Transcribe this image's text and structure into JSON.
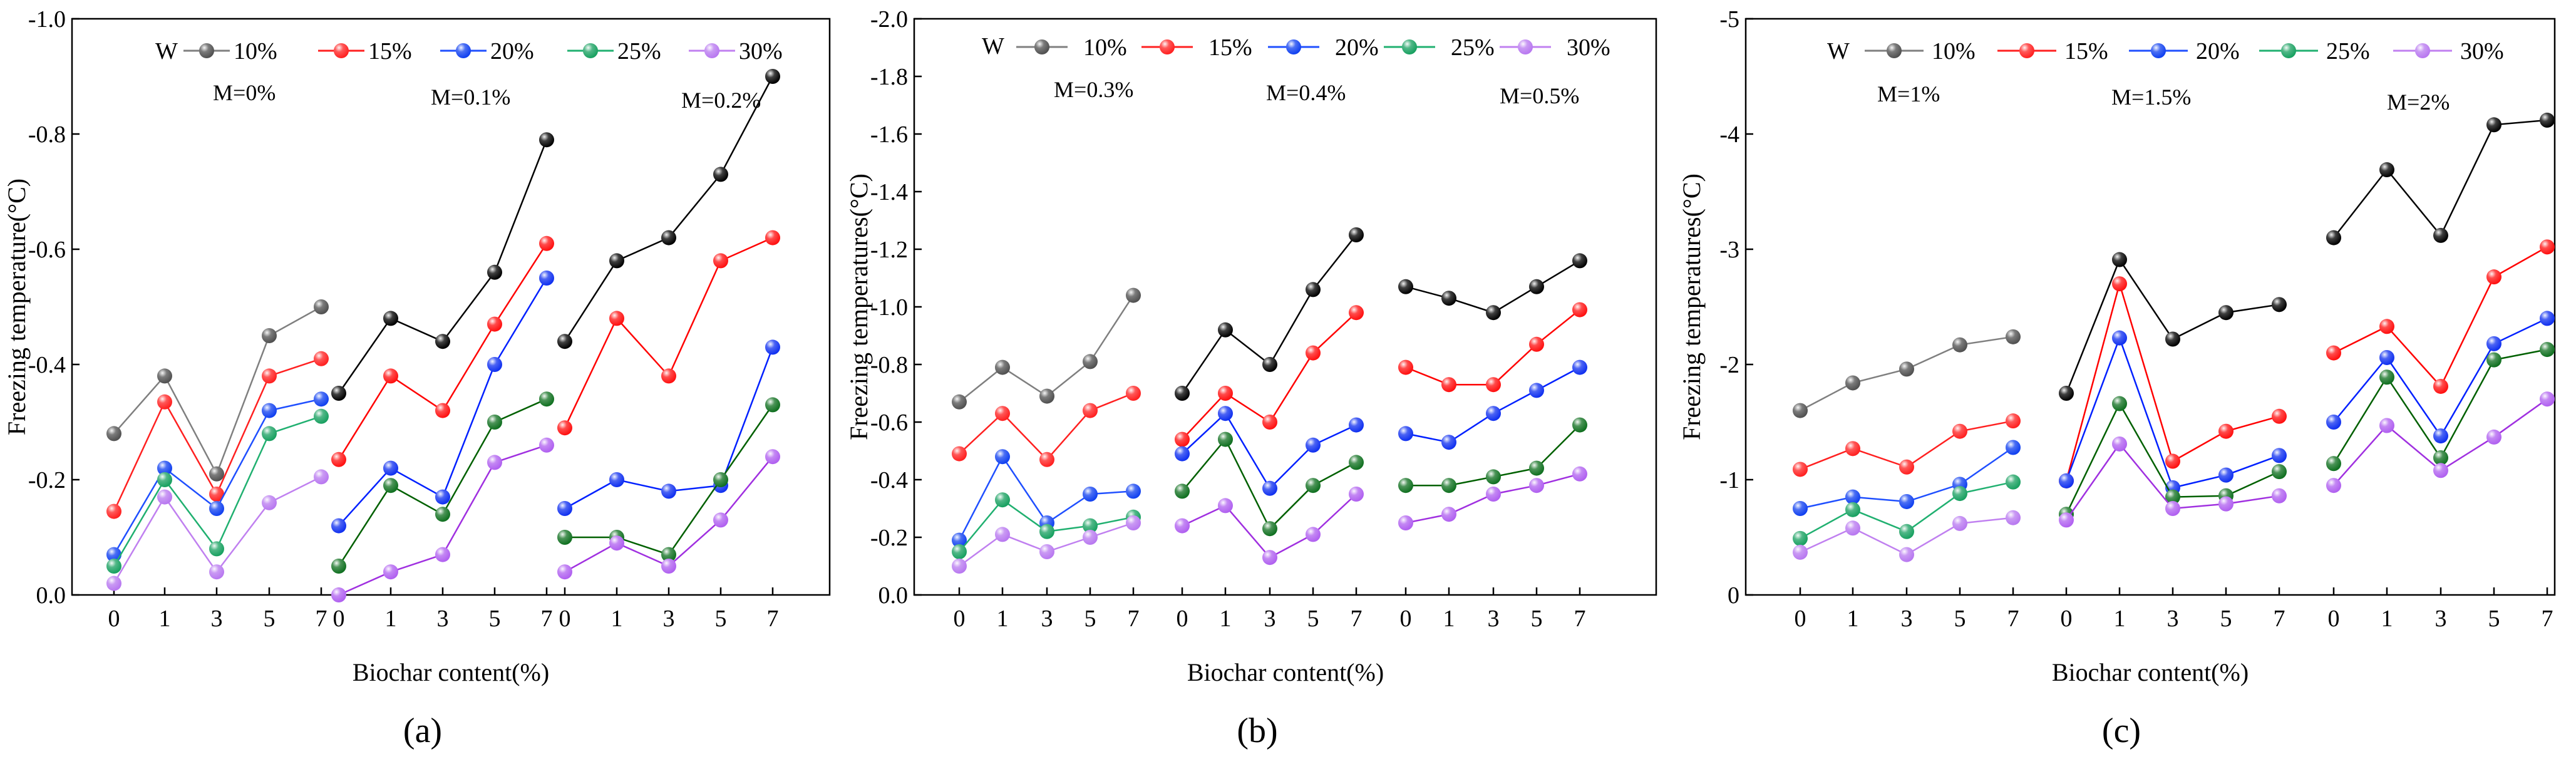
{
  "chart_data": [
    {
      "type": "line",
      "panel_label": "(a)",
      "ylabel": "Freezing temperature(°C)",
      "xlabel": "Biochar content(%)",
      "ylim": [
        0.0,
        -1.0
      ],
      "yticks": [
        "-1.0",
        "-0.8",
        "-0.6",
        "-0.4",
        "-0.2",
        "0.0"
      ],
      "ytick_values": [
        -1.0,
        -0.8,
        -0.6,
        -0.4,
        -0.2,
        0.0
      ],
      "legend_title": "W",
      "legend_names": [
        "10%",
        "15%",
        "20%",
        "25%",
        "30%"
      ],
      "categories": [
        "0",
        "1",
        "3",
        "5",
        "7"
      ],
      "groups": [
        {
          "label": "M=0%",
          "series": [
            {
              "name": "10%",
              "values": [
                -0.28,
                -0.38,
                -0.21,
                -0.45,
                -0.5
              ]
            },
            {
              "name": "15%",
              "values": [
                -0.145,
                -0.335,
                -0.175,
                -0.38,
                -0.41
              ]
            },
            {
              "name": "20%",
              "values": [
                -0.07,
                -0.22,
                -0.15,
                -0.32,
                -0.34
              ]
            },
            {
              "name": "25%",
              "values": [
                -0.05,
                -0.2,
                -0.08,
                -0.28,
                -0.31
              ]
            },
            {
              "name": "30%",
              "values": [
                -0.02,
                -0.17,
                -0.04,
                -0.16,
                -0.205
              ]
            }
          ]
        },
        {
          "label": "M=0.1%",
          "series": [
            {
              "name": "10%",
              "values": [
                -0.35,
                -0.48,
                -0.44,
                -0.56,
                -0.79
              ]
            },
            {
              "name": "15%",
              "values": [
                -0.235,
                -0.38,
                -0.32,
                -0.47,
                -0.61
              ]
            },
            {
              "name": "20%",
              "values": [
                -0.12,
                -0.22,
                -0.17,
                -0.4,
                -0.55
              ]
            },
            {
              "name": "25%",
              "values": [
                -0.05,
                -0.19,
                -0.14,
                -0.3,
                -0.34
              ]
            },
            {
              "name": "30%",
              "values": [
                0.0,
                -0.04,
                -0.07,
                -0.23,
                -0.26
              ]
            }
          ]
        },
        {
          "label": "M=0.2%",
          "series": [
            {
              "name": "10%",
              "values": [
                -0.44,
                -0.58,
                -0.62,
                -0.73,
                -0.9
              ]
            },
            {
              "name": "15%",
              "values": [
                -0.29,
                -0.48,
                -0.38,
                -0.58,
                -0.62
              ]
            },
            {
              "name": "20%",
              "values": [
                -0.15,
                -0.2,
                -0.18,
                -0.19,
                -0.43
              ]
            },
            {
              "name": "25%",
              "values": [
                -0.1,
                -0.1,
                -0.07,
                -0.2,
                -0.33
              ]
            },
            {
              "name": "30%",
              "values": [
                -0.04,
                -0.09,
                -0.05,
                -0.13,
                -0.24
              ]
            }
          ]
        }
      ]
    },
    {
      "type": "line",
      "panel_label": "(b)",
      "ylabel": "Freezing temperatures(°C)",
      "xlabel": "Biochar content(%)",
      "ylim": [
        0.0,
        -2.0
      ],
      "yticks": [
        "-2.0",
        "-1.8",
        "-1.6",
        "-1.4",
        "-1.2",
        "-1.0",
        "-0.8",
        "-0.6",
        "-0.4",
        "-0.2",
        "0.0"
      ],
      "ytick_values": [
        -2.0,
        -1.8,
        -1.6,
        -1.4,
        -1.2,
        -1.0,
        -0.8,
        -0.6,
        -0.4,
        -0.2,
        0.0
      ],
      "legend_title": "W",
      "legend_names": [
        "10%",
        "15%",
        "20%",
        "25%",
        "30%"
      ],
      "categories": [
        "0",
        "1",
        "3",
        "5",
        "7"
      ],
      "groups": [
        {
          "label": "M=0.3%",
          "series": [
            {
              "name": "10%",
              "values": [
                -0.67,
                -0.79,
                -0.69,
                -0.81,
                -1.04
              ]
            },
            {
              "name": "15%",
              "values": [
                -0.49,
                -0.63,
                -0.47,
                -0.64,
                -0.7
              ]
            },
            {
              "name": "20%",
              "values": [
                -0.19,
                -0.48,
                -0.25,
                -0.35,
                -0.36
              ]
            },
            {
              "name": "25%",
              "values": [
                -0.15,
                -0.33,
                -0.22,
                -0.24,
                -0.27
              ]
            },
            {
              "name": "30%",
              "values": [
                -0.1,
                -0.21,
                -0.15,
                -0.2,
                -0.25
              ]
            }
          ]
        },
        {
          "label": "M=0.4%",
          "series": [
            {
              "name": "10%",
              "values": [
                -0.7,
                -0.92,
                -0.8,
                -1.06,
                -1.25
              ]
            },
            {
              "name": "15%",
              "values": [
                -0.54,
                -0.7,
                -0.6,
                -0.84,
                -0.98
              ]
            },
            {
              "name": "20%",
              "values": [
                -0.49,
                -0.63,
                -0.37,
                -0.52,
                -0.59
              ]
            },
            {
              "name": "25%",
              "values": [
                -0.36,
                -0.54,
                -0.23,
                -0.38,
                -0.46
              ]
            },
            {
              "name": "30%",
              "values": [
                -0.24,
                -0.31,
                -0.13,
                -0.21,
                -0.35
              ]
            }
          ]
        },
        {
          "label": "M=0.5%",
          "series": [
            {
              "name": "10%",
              "values": [
                -1.07,
                -1.03,
                -0.98,
                -1.07,
                -1.16
              ]
            },
            {
              "name": "15%",
              "values": [
                -0.79,
                -0.73,
                -0.73,
                -0.87,
                -0.99
              ]
            },
            {
              "name": "20%",
              "values": [
                -0.56,
                -0.53,
                -0.63,
                -0.71,
                -0.79
              ]
            },
            {
              "name": "25%",
              "values": [
                -0.38,
                -0.38,
                -0.41,
                -0.44,
                -0.59
              ]
            },
            {
              "name": "30%",
              "values": [
                -0.25,
                -0.28,
                -0.35,
                -0.38,
                -0.42
              ]
            }
          ]
        }
      ]
    },
    {
      "type": "line",
      "panel_label": "(c)",
      "ylabel": "Freezing temperatures(°C)",
      "xlabel": "Biochar content(%)",
      "ylim": [
        0,
        -5
      ],
      "yticks": [
        "-5",
        "-4",
        "-3",
        "-2",
        "-1",
        "0"
      ],
      "ytick_values": [
        -5,
        -4,
        -3,
        -2,
        -1,
        0
      ],
      "legend_title": "W",
      "legend_names": [
        "10%",
        "15%",
        "20%",
        "25%",
        "30%"
      ],
      "categories": [
        "0",
        "1",
        "3",
        "5",
        "7"
      ],
      "groups": [
        {
          "label": "M=1%",
          "series": [
            {
              "name": "10%",
              "values": [
                -1.6,
                -1.84,
                -1.96,
                -2.17,
                -2.24
              ]
            },
            {
              "name": "15%",
              "values": [
                -1.09,
                -1.27,
                -1.11,
                -1.42,
                -1.51
              ]
            },
            {
              "name": "20%",
              "values": [
                -0.75,
                -0.85,
                -0.81,
                -0.96,
                -1.28
              ]
            },
            {
              "name": "25%",
              "values": [
                -0.49,
                -0.74,
                -0.55,
                -0.88,
                -0.98
              ]
            },
            {
              "name": "30%",
              "values": [
                -0.37,
                -0.58,
                -0.35,
                -0.62,
                -0.67
              ]
            }
          ]
        },
        {
          "label": "M=1.5%",
          "series": [
            {
              "name": "10%",
              "values": [
                -1.75,
                -2.91,
                -2.22,
                -2.45,
                -2.52
              ]
            },
            {
              "name": "15%",
              "values": [
                -0.99,
                -2.7,
                -1.16,
                -1.42,
                -1.55
              ]
            },
            {
              "name": "20%",
              "values": [
                -0.99,
                -2.23,
                -0.93,
                -1.04,
                -1.21
              ]
            },
            {
              "name": "25%",
              "values": [
                -0.7,
                -1.66,
                -0.85,
                -0.86,
                -1.07
              ]
            },
            {
              "name": "30%",
              "values": [
                -0.65,
                -1.31,
                -0.75,
                -0.79,
                -0.86
              ]
            }
          ]
        },
        {
          "label": "M=2%",
          "series": [
            {
              "name": "10%",
              "values": [
                -3.1,
                -3.69,
                -3.12,
                -4.08,
                -4.12
              ]
            },
            {
              "name": "15%",
              "values": [
                -2.1,
                -2.33,
                -1.81,
                -2.76,
                -3.02
              ]
            },
            {
              "name": "20%",
              "values": [
                -1.5,
                -2.06,
                -1.38,
                -2.18,
                -2.4
              ]
            },
            {
              "name": "25%",
              "values": [
                -1.14,
                -1.89,
                -1.19,
                -2.04,
                -2.13
              ]
            },
            {
              "name": "30%",
              "values": [
                -0.95,
                -1.47,
                -1.08,
                -1.37,
                -1.7
              ]
            }
          ]
        }
      ]
    }
  ],
  "colors": {
    "series_line": [
      "#7f7f7f",
      "#ff2020",
      "#1f4fff",
      "#20b070",
      "#c080f0"
    ],
    "series_marker": [
      "#505050",
      "#ff2020",
      "#1040f0",
      "#18a060",
      "#b878f0"
    ],
    "strong_line": [
      "#000000",
      "#ff0000",
      "#0020ff",
      "#006000",
      "#a030e0"
    ],
    "strong_marker": [
      "#000000",
      "#ff1010",
      "#1030f0",
      "#107020",
      "#b060f0"
    ],
    "axis": "#000000"
  }
}
